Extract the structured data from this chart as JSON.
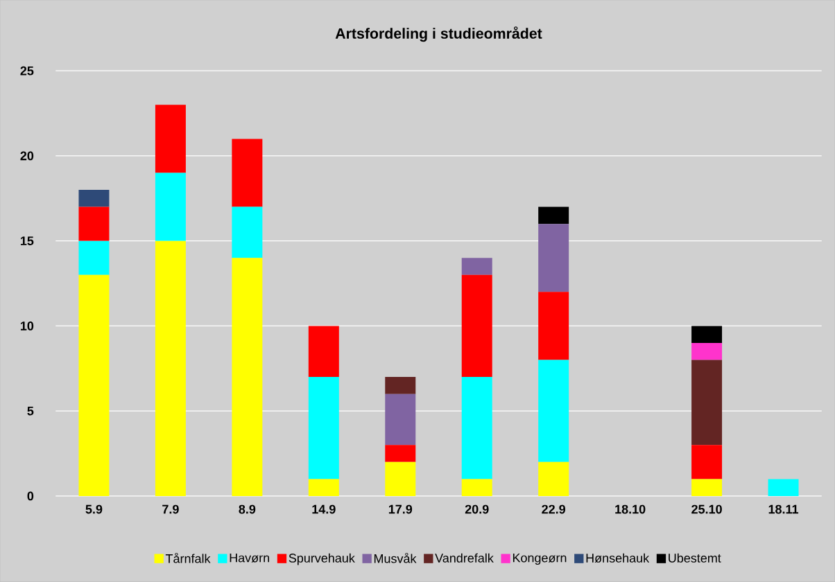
{
  "chart_data": {
    "type": "bar",
    "title": "Artsfordeling i studieområdet",
    "stacked": true,
    "categories": [
      "5.9",
      "7.9",
      "8.9",
      "14.9",
      "17.9",
      "20.9",
      "22.9",
      "18.10",
      "25.10",
      "18.11"
    ],
    "series": [
      {
        "name": "Tårnfalk",
        "color": "#ffff00",
        "values": [
          13,
          15,
          14,
          1,
          2,
          1,
          2,
          0,
          1,
          0
        ]
      },
      {
        "name": "Havørn",
        "color": "#00ffff",
        "values": [
          2,
          4,
          3,
          6,
          0,
          6,
          6,
          0,
          0,
          1
        ]
      },
      {
        "name": "Spurvehauk",
        "color": "#ff0000",
        "values": [
          2,
          4,
          4,
          3,
          1,
          6,
          4,
          0,
          2,
          0
        ]
      },
      {
        "name": "Musvåk",
        "color": "#8064a2",
        "values": [
          0,
          0,
          0,
          0,
          3,
          1,
          4,
          0,
          0,
          0
        ]
      },
      {
        "name": "Vandrefalk",
        "color": "#632523",
        "values": [
          0,
          0,
          0,
          0,
          1,
          0,
          0,
          0,
          5,
          0
        ]
      },
      {
        "name": "Kongeørn",
        "color": "#ff33cc",
        "values": [
          0,
          0,
          0,
          0,
          0,
          0,
          0,
          0,
          1,
          0
        ]
      },
      {
        "name": "Hønsehauk",
        "color": "#2e4a78",
        "values": [
          1,
          0,
          0,
          0,
          0,
          0,
          0,
          0,
          0,
          0
        ]
      },
      {
        "name": "Ubestemt",
        "color": "#000000",
        "values": [
          0,
          0,
          0,
          0,
          0,
          0,
          1,
          0,
          1,
          0
        ]
      }
    ],
    "ylim": [
      0,
      25
    ],
    "yticks": [
      0,
      5,
      10,
      15,
      20,
      25
    ],
    "grid": "y",
    "legend": "bottom"
  }
}
